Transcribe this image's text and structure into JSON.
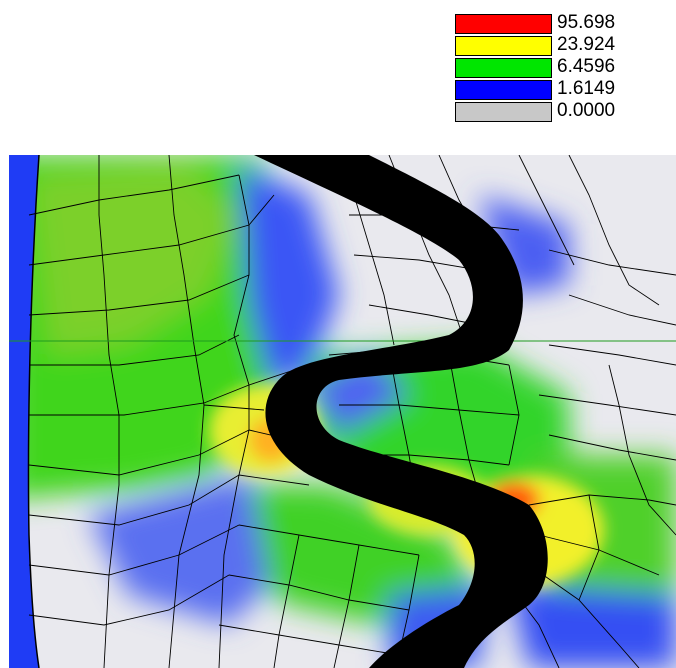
{
  "legend": {
    "entries": [
      {
        "label": "95.698",
        "color": "#ff0000"
      },
      {
        "label": "23.924",
        "color": "#ffff00"
      },
      {
        "label": "6.4596",
        "color": "#00e600"
      },
      {
        "label": "1.6149",
        "color": "#0000ff"
      },
      {
        "label": "0.0000",
        "color": "#c8c8c8"
      }
    ]
  },
  "colors": {
    "background_low": "#e9e9ee",
    "slot_fill": "#000000",
    "mesh_line": "#000000",
    "reference_line": "#1e9a1e"
  }
}
